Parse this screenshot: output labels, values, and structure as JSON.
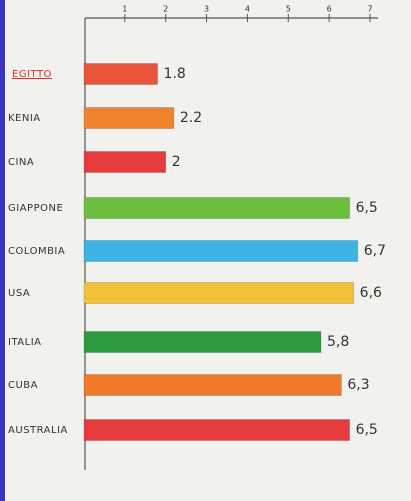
{
  "chart_data": {
    "type": "hbar",
    "categories": [
      "EGITTO",
      "KENIA",
      "CINA",
      "GIAPPONE",
      "COLOMBIA",
      "USA",
      "ITALIA",
      "CUBA",
      "AUSTRALIA"
    ],
    "values": [
      1.8,
      2.2,
      2,
      6.5,
      6.7,
      6.6,
      5.8,
      6.3,
      6.5
    ],
    "value_labels": [
      "1.8",
      "2.2",
      "2",
      "6,5",
      "6,7",
      "6,6",
      "5,8",
      "6,3",
      "6,5"
    ],
    "colors": [
      "#e8553a",
      "#f0842e",
      "#e43c3c",
      "#6cbf3c",
      "#3cb4e4",
      "#f0c23a",
      "#2e9a40",
      "#f07a2a",
      "#e43c3c"
    ],
    "xlim": [
      0,
      7
    ],
    "xticks": [
      1,
      2,
      3,
      4,
      5,
      6,
      7
    ]
  }
}
